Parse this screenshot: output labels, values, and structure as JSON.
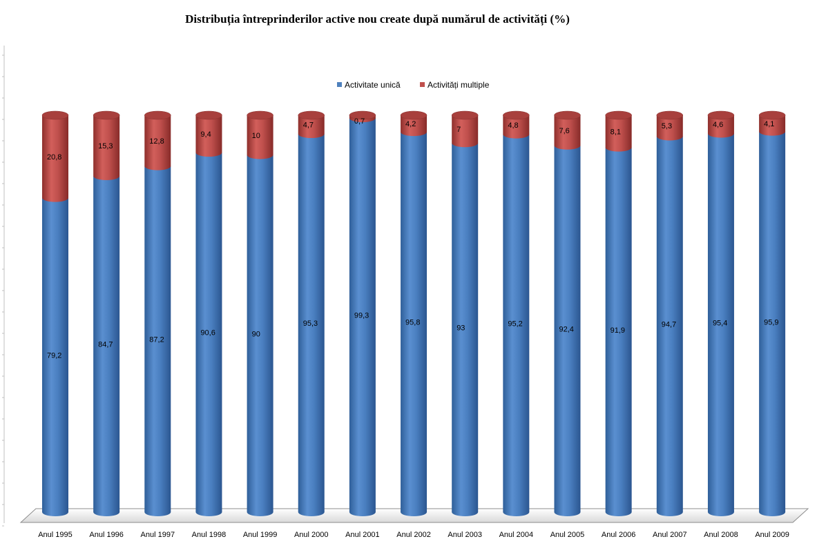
{
  "chart_data": {
    "type": "bar",
    "stacked": true,
    "style": "3d-cylinder",
    "title": "Distribuția întreprinderilor active nou create după numărul de activități (%)",
    "categories": [
      "Anul 1995",
      "Anul 1996",
      "Anul 1997",
      "Anul 1998",
      "Anul 1999",
      "Anul 2000",
      "Anul 2001",
      "Anul 2002",
      "Anul 2003",
      "Anul 2004",
      "Anul 2005",
      "Anul 2006",
      "Anul 2007",
      "Anul 2008",
      "Anul 2009"
    ],
    "series": [
      {
        "name": "Activitate unică",
        "color": "#4f81bd",
        "values": [
          79.2,
          84.7,
          87.2,
          90.6,
          90,
          95.3,
          99.3,
          95.8,
          93,
          95.2,
          92.4,
          91.9,
          94.7,
          95.4,
          95.9
        ],
        "labels": [
          "79,2",
          "84,7",
          "87,2",
          "90,6",
          "90",
          "95,3",
          "99,3",
          "95,8",
          "93",
          "95,2",
          "92,4",
          "91,9",
          "94,7",
          "95,4",
          "95,9"
        ]
      },
      {
        "name": "Activități multiple",
        "color": "#c0504d",
        "values": [
          20.8,
          15.3,
          12.8,
          9.4,
          10,
          4.7,
          0.7,
          4.2,
          7,
          4.8,
          7.6,
          8.1,
          5.3,
          4.6,
          4.1
        ],
        "labels": [
          "20,8",
          "15,3",
          "12,8",
          "9,4",
          "10",
          "4,7",
          "0,7",
          "4,2",
          "7",
          "4,8",
          "7,6",
          "8,1",
          "5,3",
          "4,6",
          "4,1"
        ]
      }
    ],
    "ylim": [
      0,
      100
    ],
    "legend": "top-center",
    "grid": false
  }
}
